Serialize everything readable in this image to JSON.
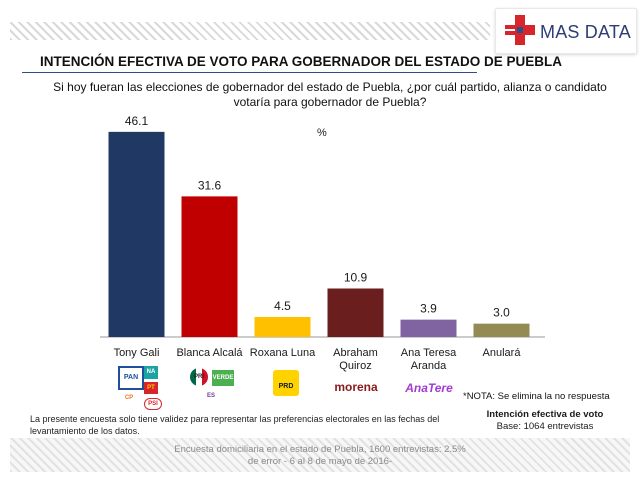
{
  "header": {
    "brand": "MAS DATA",
    "colors": {
      "cross_red": "#d6262c",
      "cross_blue": "#2c4f8a"
    }
  },
  "title": "INTENCIÓN EFECTIVA DE VOTO PARA GOBERNADOR DEL ESTADO DE PUEBLA",
  "question": "Si hoy fueran las elecciones de gobernador del estado de Puebla, ¿por cuál partido, alianza o candidato votaría para gobernador de Puebla?",
  "unit": "%",
  "chart_data": {
    "type": "bar",
    "categories": [
      "Tony Gali",
      "Blanca Alcalá",
      "Roxana Luna",
      "Abraham Quiroz",
      "Ana Teresa Aranda",
      "Anulará"
    ],
    "category_lines": [
      [
        "Tony Gali"
      ],
      [
        "Blanca Alcalá"
      ],
      [
        "Roxana Luna"
      ],
      [
        "Abraham",
        "Quiroz"
      ],
      [
        "Ana Teresa",
        "Aranda"
      ],
      [
        "Anulará"
      ]
    ],
    "values": [
      46.1,
      31.6,
      4.5,
      10.9,
      3.9,
      3.0
    ],
    "value_labels": [
      "46.1",
      "31.6",
      "4.5",
      "10.9",
      "3.9",
      "3.0"
    ],
    "colors": [
      "#1f3864",
      "#c00000",
      "#ffc000",
      "#6b1e1e",
      "#8064a2",
      "#948a54"
    ],
    "ylim": [
      0,
      50
    ],
    "grid": false,
    "legend": "none"
  },
  "party_logos": {
    "gali": [
      "PAN",
      "PT",
      "NA",
      "CP",
      "PSI"
    ],
    "alcala": [
      "PRI",
      "VERDE",
      "ES"
    ],
    "luna": [
      "PRD"
    ],
    "quiroz": [
      "morena"
    ],
    "aranda": [
      "AnaTere"
    ]
  },
  "notes": {
    "nota": "*NOTA: Se elimina la no respuesta",
    "disclaimer": "La presente encuesta solo tiene validez para representar las preferencias electorales en las fechas del levantamiento de los datos.",
    "base_title": "Intención efectiva de voto",
    "base_sub": "Base: 1064 entrevistas"
  },
  "footer": "Encuesta domiciliaria en el estado de Puebla, 1600 entrevistas: 2.5% de error - 6 al 8 de mayo de 2016-"
}
